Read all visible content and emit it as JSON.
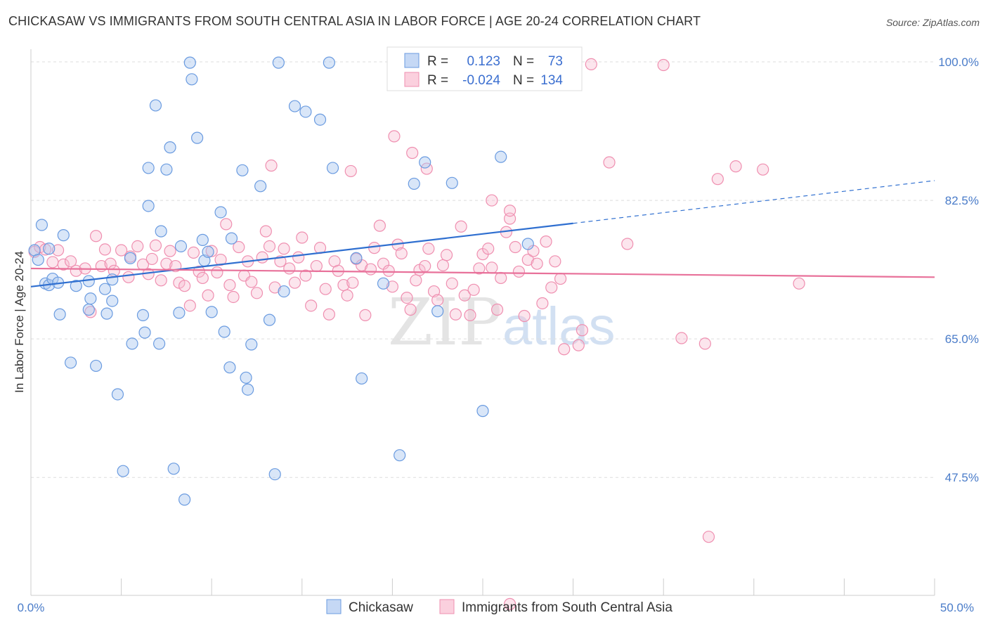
{
  "title": "CHICKASAW VS IMMIGRANTS FROM SOUTH CENTRAL ASIA IN LABOR FORCE | AGE 20-24 CORRELATION CHART",
  "source": "Source: ZipAtlas.com",
  "watermark": {
    "zip": "ZIP",
    "atlas": "atlas"
  },
  "legend_box": {
    "rows": [
      {
        "r_label": "R =",
        "r_value": "0.123",
        "n_label": "N =",
        "n_value": "73"
      },
      {
        "r_label": "R =",
        "r_value": "-0.024",
        "n_label": "N =",
        "n_value": "134"
      }
    ]
  },
  "chart_data": {
    "type": "scatter",
    "title": "CHICKASAW VS IMMIGRANTS FROM SOUTH CENTRAL ASIA IN LABOR FORCE | AGE 20-24 CORRELATION CHART",
    "xlabel": "",
    "ylabel": "In Labor Force | Age 20-24",
    "xlim": [
      0,
      50
    ],
    "ylim": [
      32.6,
      101.6
    ],
    "x_tick_labels": [
      "0.0%",
      "50.0%"
    ],
    "y_ticks": [
      47.5,
      65.0,
      82.5,
      100.0
    ],
    "y_tick_labels": [
      "47.5%",
      "65.0%",
      "82.5%",
      "100.0%"
    ],
    "grid": "horizontal dashed",
    "legend_position": "top-center",
    "colors": {
      "chickasaw": "#6a9be0",
      "immigrants": "#ef8fb0",
      "chickasaw_line": "#2f6fd0",
      "immigrants_line": "#e8719a"
    },
    "series": [
      {
        "name": "Chickasaw",
        "R": 0.123,
        "N": 73,
        "trend": {
          "x0": 0,
          "y0": 71.6,
          "x1": 30,
          "y1": 79.6,
          "dashed_to_x": 50,
          "dashed_to_y": 85.0
        },
        "points": [
          [
            0.2,
            76.2
          ],
          [
            0.4,
            75.0
          ],
          [
            0.6,
            79.4
          ],
          [
            0.8,
            72.0
          ],
          [
            1.0,
            71.8
          ],
          [
            1.0,
            76.4
          ],
          [
            1.2,
            72.6
          ],
          [
            1.5,
            72.1
          ],
          [
            1.6,
            68.1
          ],
          [
            1.8,
            78.1
          ],
          [
            2.2,
            62.0
          ],
          [
            2.5,
            71.7
          ],
          [
            3.2,
            68.7
          ],
          [
            3.2,
            72.3
          ],
          [
            3.3,
            70.1
          ],
          [
            3.6,
            61.6
          ],
          [
            4.1,
            71.3
          ],
          [
            4.2,
            68.2
          ],
          [
            4.5,
            72.5
          ],
          [
            4.5,
            69.8
          ],
          [
            4.8,
            58.0
          ],
          [
            5.1,
            48.3
          ],
          [
            5.5,
            75.2
          ],
          [
            5.6,
            64.4
          ],
          [
            6.2,
            68.0
          ],
          [
            6.3,
            65.8
          ],
          [
            6.5,
            81.8
          ],
          [
            6.5,
            86.6
          ],
          [
            6.9,
            94.5
          ],
          [
            7.1,
            64.4
          ],
          [
            7.2,
            78.6
          ],
          [
            7.5,
            86.4
          ],
          [
            7.7,
            89.2
          ],
          [
            7.9,
            48.6
          ],
          [
            8.2,
            68.3
          ],
          [
            8.3,
            76.7
          ],
          [
            8.5,
            44.7
          ],
          [
            8.8,
            99.9
          ],
          [
            8.9,
            97.8
          ],
          [
            9.2,
            90.4
          ],
          [
            9.5,
            77.5
          ],
          [
            9.6,
            74.9
          ],
          [
            9.8,
            76.0
          ],
          [
            10.0,
            68.4
          ],
          [
            10.7,
            65.9
          ],
          [
            11.0,
            61.4
          ],
          [
            11.1,
            77.7
          ],
          [
            11.7,
            86.3
          ],
          [
            11.9,
            60.1
          ],
          [
            12.0,
            58.6
          ],
          [
            12.2,
            64.3
          ],
          [
            12.7,
            84.3
          ],
          [
            13.2,
            67.4
          ],
          [
            13.5,
            47.9
          ],
          [
            13.7,
            99.9
          ],
          [
            14.6,
            94.4
          ],
          [
            15.2,
            93.7
          ],
          [
            16.0,
            92.7
          ],
          [
            16.5,
            99.9
          ],
          [
            16.7,
            86.6
          ],
          [
            18.3,
            60.0
          ],
          [
            20.4,
            50.3
          ],
          [
            21.2,
            84.6
          ],
          [
            21.8,
            87.3
          ],
          [
            23.3,
            84.7
          ],
          [
            25.0,
            55.9
          ],
          [
            26.0,
            88.0
          ],
          [
            27.5,
            77.0
          ],
          [
            14.0,
            71.0
          ],
          [
            18.0,
            75.2
          ],
          [
            22.5,
            68.5
          ],
          [
            10.5,
            81.0
          ],
          [
            19.5,
            72.0
          ]
        ]
      },
      {
        "name": "Immigrants from South Central Asia",
        "R": -0.024,
        "N": 134,
        "trend": {
          "x0": 0,
          "y0": 73.9,
          "x1": 50,
          "y1": 72.8
        },
        "points": [
          [
            0.2,
            76.0
          ],
          [
            0.5,
            76.6
          ],
          [
            0.8,
            76.3
          ],
          [
            1.2,
            74.7
          ],
          [
            1.5,
            76.2
          ],
          [
            1.8,
            74.4
          ],
          [
            2.2,
            74.8
          ],
          [
            2.5,
            73.6
          ],
          [
            3.0,
            73.9
          ],
          [
            3.3,
            68.4
          ],
          [
            3.6,
            78.0
          ],
          [
            3.9,
            74.2
          ],
          [
            4.1,
            76.3
          ],
          [
            4.4,
            74.5
          ],
          [
            4.6,
            73.6
          ],
          [
            5.0,
            76.2
          ],
          [
            5.4,
            72.8
          ],
          [
            5.5,
            75.4
          ],
          [
            5.9,
            76.7
          ],
          [
            6.2,
            74.4
          ],
          [
            6.5,
            73.2
          ],
          [
            6.7,
            75.1
          ],
          [
            6.9,
            76.8
          ],
          [
            7.2,
            72.4
          ],
          [
            7.5,
            74.5
          ],
          [
            7.7,
            76.1
          ],
          [
            8.0,
            74.2
          ],
          [
            8.2,
            72.1
          ],
          [
            8.5,
            71.7
          ],
          [
            8.8,
            69.2
          ],
          [
            9.0,
            75.9
          ],
          [
            9.3,
            73.5
          ],
          [
            9.5,
            72.7
          ],
          [
            9.8,
            70.5
          ],
          [
            10.0,
            76.1
          ],
          [
            10.3,
            73.4
          ],
          [
            10.5,
            75.0
          ],
          [
            10.8,
            79.5
          ],
          [
            11.0,
            71.8
          ],
          [
            11.2,
            70.3
          ],
          [
            11.5,
            76.6
          ],
          [
            11.8,
            73.0
          ],
          [
            12.0,
            74.8
          ],
          [
            12.2,
            72.2
          ],
          [
            12.5,
            70.8
          ],
          [
            12.8,
            75.3
          ],
          [
            13.0,
            78.6
          ],
          [
            13.2,
            76.7
          ],
          [
            13.5,
            71.5
          ],
          [
            13.8,
            74.8
          ],
          [
            14.0,
            76.4
          ],
          [
            14.3,
            73.9
          ],
          [
            14.6,
            72.1
          ],
          [
            14.8,
            75.3
          ],
          [
            15.0,
            77.8
          ],
          [
            15.2,
            73.0
          ],
          [
            15.5,
            69.2
          ],
          [
            15.8,
            74.2
          ],
          [
            16.0,
            76.5
          ],
          [
            16.3,
            71.3
          ],
          [
            16.5,
            68.1
          ],
          [
            16.8,
            74.8
          ],
          [
            17.0,
            73.6
          ],
          [
            17.3,
            71.8
          ],
          [
            17.5,
            70.5
          ],
          [
            17.8,
            72.1
          ],
          [
            18.0,
            75.1
          ],
          [
            18.3,
            74.3
          ],
          [
            18.5,
            68.0
          ],
          [
            18.8,
            73.8
          ],
          [
            19.0,
            76.5
          ],
          [
            19.3,
            79.3
          ],
          [
            19.5,
            74.5
          ],
          [
            19.8,
            73.6
          ],
          [
            20.0,
            71.6
          ],
          [
            20.3,
            76.9
          ],
          [
            20.5,
            75.8
          ],
          [
            20.8,
            70.2
          ],
          [
            21.0,
            68.7
          ],
          [
            21.3,
            72.4
          ],
          [
            21.5,
            73.7
          ],
          [
            21.8,
            74.2
          ],
          [
            22.0,
            76.4
          ],
          [
            22.3,
            71.0
          ],
          [
            22.5,
            69.9
          ],
          [
            22.8,
            74.3
          ],
          [
            23.0,
            75.6
          ],
          [
            23.3,
            72.0
          ],
          [
            23.5,
            68.1
          ],
          [
            23.8,
            79.2
          ],
          [
            24.0,
            70.5
          ],
          [
            24.3,
            68.0
          ],
          [
            24.5,
            71.2
          ],
          [
            24.8,
            73.9
          ],
          [
            25.0,
            75.7
          ],
          [
            25.3,
            76.4
          ],
          [
            25.5,
            74.0
          ],
          [
            25.8,
            68.7
          ],
          [
            26.0,
            72.7
          ],
          [
            26.3,
            78.5
          ],
          [
            26.5,
            80.2
          ],
          [
            26.8,
            76.6
          ],
          [
            27.0,
            73.5
          ],
          [
            27.3,
            67.9
          ],
          [
            27.5,
            75.0
          ],
          [
            27.8,
            76.1
          ],
          [
            28.0,
            74.5
          ],
          [
            28.3,
            69.5
          ],
          [
            28.5,
            77.3
          ],
          [
            28.8,
            71.5
          ],
          [
            29.0,
            74.8
          ],
          [
            29.3,
            72.6
          ],
          [
            29.5,
            63.7
          ],
          [
            13.3,
            86.9
          ],
          [
            17.7,
            86.2
          ],
          [
            20.1,
            90.6
          ],
          [
            21.1,
            88.5
          ],
          [
            21.9,
            86.5
          ],
          [
            25.5,
            82.5
          ],
          [
            26.5,
            81.2
          ],
          [
            30.5,
            66.1
          ],
          [
            30.3,
            64.2
          ],
          [
            31.0,
            99.7
          ],
          [
            32.0,
            87.3
          ],
          [
            33.0,
            77.0
          ],
          [
            35.0,
            99.6
          ],
          [
            36.0,
            65.1
          ],
          [
            37.3,
            64.4
          ],
          [
            38.0,
            85.2
          ],
          [
            39.0,
            86.8
          ],
          [
            40.5,
            86.4
          ],
          [
            42.5,
            72.0
          ],
          [
            37.5,
            40.0
          ],
          [
            26.5,
            31.5
          ]
        ]
      }
    ]
  }
}
